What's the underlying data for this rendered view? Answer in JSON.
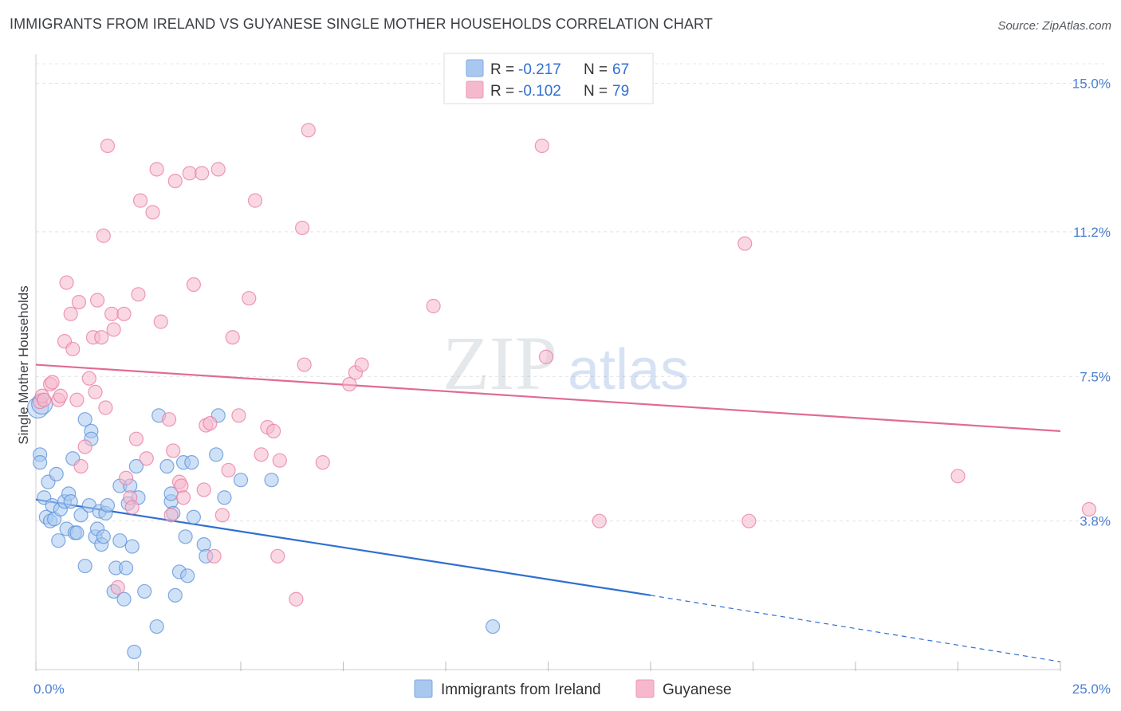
{
  "title": "IMMIGRANTS FROM IRELAND VS GUYANESE SINGLE MOTHER HOUSEHOLDS CORRELATION CHART",
  "source": "Source: ZipAtlas.com",
  "watermark": {
    "zip": "ZIP",
    "atlas": "atlas"
  },
  "stats": [
    {
      "r_label": "R =",
      "r_value": "-0.217",
      "n_label": "N =",
      "n_value": "67",
      "color": "#a8c8f0"
    },
    {
      "r_label": "R =",
      "r_value": "-0.102",
      "n_label": "N =",
      "n_value": "79",
      "color": "#f6b8cc"
    }
  ],
  "chart_data": {
    "type": "scatter",
    "title": "IMMIGRANTS FROM IRELAND VS GUYANESE SINGLE MOTHER HOUSEHOLDS CORRELATION CHART",
    "xlabel": "",
    "ylabel": "Single Mother Households",
    "xlim": [
      0,
      25
    ],
    "ylim": [
      0,
      15.5
    ],
    "x_ticks": [
      0,
      25
    ],
    "x_tick_labels": [
      "0.0%",
      "25.0%"
    ],
    "y_ticks": [
      3.8,
      7.5,
      11.2,
      15.0
    ],
    "y_tick_labels": [
      "3.8%",
      "7.5%",
      "11.2%",
      "15.0%"
    ],
    "grid": true,
    "legend_position": "bottom",
    "series": [
      {
        "name": "Immigrants from Ireland",
        "color": "#5b8fd8",
        "fill": "#a8c8f0",
        "trend": {
          "x0": 0,
          "y0": 4.35,
          "x1": 15.0,
          "y1": 1.9,
          "dash_x1": 25,
          "dash_y1": 0.2
        },
        "points": [
          [
            0.1,
            5.5
          ],
          [
            0.1,
            5.3
          ],
          [
            0.2,
            4.4
          ],
          [
            0.25,
            3.9
          ],
          [
            0.3,
            4.8
          ],
          [
            0.35,
            3.8
          ],
          [
            0.4,
            4.2
          ],
          [
            0.45,
            3.85
          ],
          [
            0.5,
            5.0
          ],
          [
            0.55,
            3.3
          ],
          [
            0.6,
            4.1
          ],
          [
            0.7,
            4.3
          ],
          [
            0.75,
            3.6
          ],
          [
            0.8,
            4.5
          ],
          [
            0.85,
            4.3
          ],
          [
            0.9,
            5.4
          ],
          [
            0.95,
            3.5
          ],
          [
            1.0,
            3.5
          ],
          [
            1.1,
            3.95
          ],
          [
            1.2,
            2.65
          ],
          [
            1.2,
            6.4
          ],
          [
            1.3,
            4.2
          ],
          [
            1.35,
            6.1
          ],
          [
            1.35,
            5.9
          ],
          [
            1.45,
            3.4
          ],
          [
            1.5,
            3.6
          ],
          [
            1.55,
            4.05
          ],
          [
            1.6,
            3.2
          ],
          [
            1.65,
            3.4
          ],
          [
            1.7,
            4.0
          ],
          [
            1.75,
            4.2
          ],
          [
            1.9,
            2.0
          ],
          [
            1.95,
            2.6
          ],
          [
            2.05,
            3.3
          ],
          [
            2.05,
            4.7
          ],
          [
            2.15,
            1.8
          ],
          [
            2.2,
            2.6
          ],
          [
            2.25,
            4.25
          ],
          [
            2.3,
            4.7
          ],
          [
            2.35,
            3.15
          ],
          [
            2.4,
            0.45
          ],
          [
            2.45,
            5.2
          ],
          [
            2.5,
            4.4
          ],
          [
            2.65,
            2.0
          ],
          [
            2.95,
            1.1
          ],
          [
            3.0,
            6.5
          ],
          [
            3.2,
            5.2
          ],
          [
            3.3,
            4.3
          ],
          [
            3.3,
            4.5
          ],
          [
            3.35,
            4.0
          ],
          [
            3.4,
            1.9
          ],
          [
            3.5,
            2.5
          ],
          [
            3.6,
            5.3
          ],
          [
            3.65,
            3.4
          ],
          [
            3.7,
            2.4
          ],
          [
            3.8,
            5.3
          ],
          [
            3.85,
            3.9
          ],
          [
            4.1,
            3.2
          ],
          [
            4.15,
            2.9
          ],
          [
            4.4,
            5.5
          ],
          [
            4.45,
            6.5
          ],
          [
            4.6,
            4.4
          ],
          [
            5.0,
            4.85
          ],
          [
            5.75,
            4.85
          ],
          [
            11.15,
            1.1
          ],
          [
            0.05,
            6.7
          ],
          [
            0.15,
            6.8
          ]
        ]
      },
      {
        "name": "Guyanese",
        "color": "#e87aa0",
        "fill": "#f6b8cc",
        "trend": {
          "x0": 0,
          "y0": 7.8,
          "x1": 25,
          "y1": 6.1
        },
        "points": [
          [
            0.1,
            6.85
          ],
          [
            0.15,
            7.0
          ],
          [
            0.35,
            7.3
          ],
          [
            0.4,
            7.35
          ],
          [
            0.55,
            6.9
          ],
          [
            0.6,
            7.0
          ],
          [
            0.7,
            8.4
          ],
          [
            0.75,
            9.9
          ],
          [
            0.85,
            9.1
          ],
          [
            0.9,
            8.2
          ],
          [
            1.05,
            9.4
          ],
          [
            1.1,
            5.2
          ],
          [
            1.2,
            5.7
          ],
          [
            1.3,
            7.45
          ],
          [
            1.4,
            8.5
          ],
          [
            1.45,
            7.1
          ],
          [
            1.5,
            9.45
          ],
          [
            1.6,
            8.5
          ],
          [
            1.65,
            11.1
          ],
          [
            1.75,
            13.4
          ],
          [
            1.85,
            9.1
          ],
          [
            1.9,
            8.7
          ],
          [
            2.0,
            2.1
          ],
          [
            2.15,
            9.1
          ],
          [
            2.2,
            4.9
          ],
          [
            2.3,
            4.4
          ],
          [
            2.35,
            4.15
          ],
          [
            2.45,
            5.9
          ],
          [
            2.5,
            9.6
          ],
          [
            2.55,
            12.0
          ],
          [
            2.7,
            5.4
          ],
          [
            2.85,
            11.7
          ],
          [
            2.95,
            12.8
          ],
          [
            3.05,
            8.9
          ],
          [
            3.25,
            6.4
          ],
          [
            3.3,
            3.95
          ],
          [
            3.35,
            5.6
          ],
          [
            3.4,
            12.5
          ],
          [
            3.5,
            4.8
          ],
          [
            3.55,
            4.7
          ],
          [
            3.6,
            4.4
          ],
          [
            3.75,
            12.7
          ],
          [
            3.85,
            9.85
          ],
          [
            4.05,
            12.7
          ],
          [
            4.1,
            4.6
          ],
          [
            4.15,
            6.25
          ],
          [
            4.25,
            6.3
          ],
          [
            4.35,
            2.9
          ],
          [
            4.45,
            12.8
          ],
          [
            4.55,
            3.95
          ],
          [
            4.7,
            5.1
          ],
          [
            4.8,
            8.5
          ],
          [
            4.95,
            6.5
          ],
          [
            5.2,
            9.5
          ],
          [
            5.35,
            12.0
          ],
          [
            5.5,
            5.5
          ],
          [
            5.65,
            6.2
          ],
          [
            5.8,
            6.1
          ],
          [
            5.9,
            2.9
          ],
          [
            5.95,
            5.35
          ],
          [
            6.35,
            1.8
          ],
          [
            6.5,
            11.3
          ],
          [
            6.55,
            7.8
          ],
          [
            6.65,
            13.8
          ],
          [
            7.0,
            5.3
          ],
          [
            7.65,
            7.3
          ],
          [
            7.8,
            7.6
          ],
          [
            7.95,
            7.8
          ],
          [
            9.7,
            9.3
          ],
          [
            12.35,
            13.4
          ],
          [
            12.45,
            8.0
          ],
          [
            13.75,
            3.8
          ],
          [
            17.3,
            10.9
          ],
          [
            17.4,
            3.8
          ],
          [
            22.5,
            4.95
          ],
          [
            25.7,
            4.1
          ],
          [
            0.2,
            6.9
          ],
          [
            1.7,
            6.7
          ],
          [
            1.0,
            6.9
          ]
        ]
      }
    ]
  }
}
